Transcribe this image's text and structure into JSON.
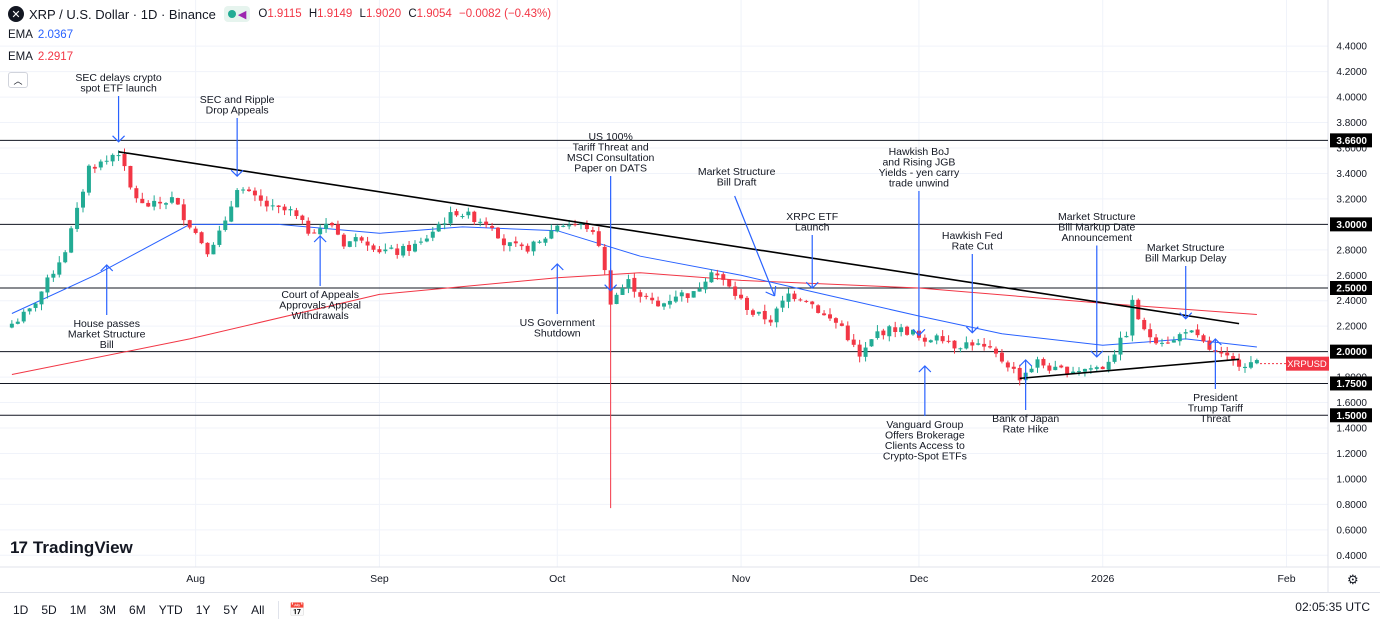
{
  "header": {
    "title": "XRP / U.S. Dollar · 1D · Binance",
    "ohlc": [
      {
        "k": "O",
        "v": "1.9115"
      },
      {
        "k": "H",
        "v": "1.9149"
      },
      {
        "k": "L",
        "v": "1.9020"
      },
      {
        "k": "C",
        "v": "1.9054"
      }
    ],
    "change": "−0.0082 (−0.43%)"
  },
  "indicators": [
    {
      "name": "EMA",
      "value": "2.0367",
      "color": "#2962ff"
    },
    {
      "name": "EMA",
      "value": "2.2917",
      "color": "#f23645"
    }
  ],
  "bottom_bar": {
    "timeframes": [
      "1D",
      "5D",
      "1M",
      "3M",
      "6M",
      "YTD",
      "1Y",
      "5Y",
      "All"
    ],
    "clock": "02:05:35 UTC"
  },
  "logo": "TradingView",
  "colors": {
    "up": "#22ab94",
    "down": "#f23645",
    "ema_fast": "#2962ff",
    "ema_slow": "#f23645",
    "annotation": "#2962ff"
  },
  "chart_data": {
    "type": "candlestick",
    "symbol_label": "XRPUSD",
    "ylim": [
      0.3,
      4.7
    ],
    "y_ticks": [
      "4.4000",
      "4.2000",
      "4.0000",
      "3.8000",
      "3.6000",
      "3.4000",
      "3.2000",
      "3.0000",
      "2.8000",
      "2.6000",
      "2.4000",
      "2.2000",
      "2.0000",
      "1.8000",
      "1.6000",
      "1.4000",
      "1.2000",
      "1.0000",
      "0.8000",
      "0.6000",
      "0.4000"
    ],
    "x_ticks": [
      {
        "label": "Aug",
        "date": "2025-08-01"
      },
      {
        "label": "Sep",
        "date": "2025-09-01"
      },
      {
        "label": "Oct",
        "date": "2025-10-01"
      },
      {
        "label": "Nov",
        "date": "2025-11-01"
      },
      {
        "label": "Dec",
        "date": "2025-12-01"
      },
      {
        "label": "2026",
        "date": "2026-01-01"
      },
      {
        "label": "Feb",
        "date": "2026-02-01"
      }
    ],
    "current_price": 1.9054,
    "horizontal_levels": [
      {
        "label": "3.6600",
        "value": 3.66
      },
      {
        "label": "3.0000",
        "value": 3.0
      },
      {
        "label": "2.5000",
        "value": 2.5
      },
      {
        "label": "2.0000",
        "value": 2.0
      },
      {
        "label": "1.7500",
        "value": 1.75
      },
      {
        "label": "1.5000",
        "value": 1.5
      }
    ],
    "trendlines": [
      {
        "from": [
          "2025-07-19",
          3.57
        ],
        "to": [
          "2026-01-24",
          2.22
        ]
      },
      {
        "from": [
          "2025-12-18",
          1.79
        ],
        "to": [
          "2026-01-24",
          1.94
        ]
      }
    ],
    "close_series": [
      {
        "date": "2025-07-01",
        "close": 2.22
      },
      {
        "date": "2025-07-04",
        "close": 2.32
      },
      {
        "date": "2025-07-07",
        "close": 2.55
      },
      {
        "date": "2025-07-10",
        "close": 2.8
      },
      {
        "date": "2025-07-12",
        "close": 3.1
      },
      {
        "date": "2025-07-14",
        "close": 3.45
      },
      {
        "date": "2025-07-17",
        "close": 3.5
      },
      {
        "date": "2025-07-18",
        "close": 3.55
      },
      {
        "date": "2025-07-19",
        "close": 3.57
      },
      {
        "date": "2025-07-21",
        "close": 3.28
      },
      {
        "date": "2025-07-23",
        "close": 3.15
      },
      {
        "date": "2025-07-25",
        "close": 3.15
      },
      {
        "date": "2025-07-28",
        "close": 3.2
      },
      {
        "date": "2025-07-31",
        "close": 3.0
      },
      {
        "date": "2025-08-03",
        "close": 2.8
      },
      {
        "date": "2025-08-06",
        "close": 3.0
      },
      {
        "date": "2025-08-08",
        "close": 3.3
      },
      {
        "date": "2025-08-11",
        "close": 3.2
      },
      {
        "date": "2025-08-14",
        "close": 3.12
      },
      {
        "date": "2025-08-17",
        "close": 3.1
      },
      {
        "date": "2025-08-20",
        "close": 2.95
      },
      {
        "date": "2025-08-24",
        "close": 3.0
      },
      {
        "date": "2025-08-26",
        "close": 2.85
      },
      {
        "date": "2025-08-29",
        "close": 2.9
      },
      {
        "date": "2025-09-01",
        "close": 2.8
      },
      {
        "date": "2025-09-04",
        "close": 2.78
      },
      {
        "date": "2025-09-08",
        "close": 2.85
      },
      {
        "date": "2025-09-11",
        "close": 3.0
      },
      {
        "date": "2025-09-14",
        "close": 3.1
      },
      {
        "date": "2025-09-17",
        "close": 3.05
      },
      {
        "date": "2025-09-20",
        "close": 3.0
      },
      {
        "date": "2025-09-22",
        "close": 2.85
      },
      {
        "date": "2025-09-25",
        "close": 2.8
      },
      {
        "date": "2025-09-28",
        "close": 2.85
      },
      {
        "date": "2025-10-01",
        "close": 3.0
      },
      {
        "date": "2025-10-04",
        "close": 3.0
      },
      {
        "date": "2025-10-06",
        "close": 2.98
      },
      {
        "date": "2025-10-08",
        "close": 2.85
      },
      {
        "date": "2025-10-10",
        "close": 2.4
      },
      {
        "date": "2025-10-13",
        "close": 2.55
      },
      {
        "date": "2025-10-15",
        "close": 2.45
      },
      {
        "date": "2025-10-18",
        "close": 2.35
      },
      {
        "date": "2025-10-21",
        "close": 2.45
      },
      {
        "date": "2025-10-24",
        "close": 2.45
      },
      {
        "date": "2025-10-27",
        "close": 2.65
      },
      {
        "date": "2025-10-30",
        "close": 2.5
      },
      {
        "date": "2025-11-03",
        "close": 2.3
      },
      {
        "date": "2025-11-06",
        "close": 2.25
      },
      {
        "date": "2025-11-09",
        "close": 2.45
      },
      {
        "date": "2025-11-12",
        "close": 2.42
      },
      {
        "date": "2025-11-15",
        "close": 2.28
      },
      {
        "date": "2025-11-18",
        "close": 2.2
      },
      {
        "date": "2025-11-21",
        "close": 1.95
      },
      {
        "date": "2025-11-24",
        "close": 2.15
      },
      {
        "date": "2025-11-27",
        "close": 2.18
      },
      {
        "date": "2025-11-30",
        "close": 2.15
      },
      {
        "date": "2025-12-02",
        "close": 2.05
      },
      {
        "date": "2025-12-04",
        "close": 2.15
      },
      {
        "date": "2025-12-07",
        "close": 2.05
      },
      {
        "date": "2025-12-10",
        "close": 2.07
      },
      {
        "date": "2025-12-13",
        "close": 2.0
      },
      {
        "date": "2025-12-16",
        "close": 1.9
      },
      {
        "date": "2025-12-18",
        "close": 1.8
      },
      {
        "date": "2025-12-21",
        "close": 1.92
      },
      {
        "date": "2025-12-24",
        "close": 1.85
      },
      {
        "date": "2025-12-28",
        "close": 1.86
      },
      {
        "date": "2026-01-01",
        "close": 1.88
      },
      {
        "date": "2026-01-03",
        "close": 2.0
      },
      {
        "date": "2026-01-05",
        "close": 2.15
      },
      {
        "date": "2026-01-06",
        "close": 2.38
      },
      {
        "date": "2026-01-08",
        "close": 2.15
      },
      {
        "date": "2026-01-10",
        "close": 2.1
      },
      {
        "date": "2026-01-13",
        "close": 2.08
      },
      {
        "date": "2026-01-15",
        "close": 2.18
      },
      {
        "date": "2026-01-17",
        "close": 2.1
      },
      {
        "date": "2026-01-20",
        "close": 1.98
      },
      {
        "date": "2026-01-23",
        "close": 1.92
      },
      {
        "date": "2026-01-25",
        "close": 1.91
      },
      {
        "date": "2026-01-27",
        "close": 1.9054
      }
    ],
    "ema_fast": [
      {
        "date": "2025-07-01",
        "value": 2.3
      },
      {
        "date": "2025-07-15",
        "value": 2.6
      },
      {
        "date": "2025-07-31",
        "value": 3.0
      },
      {
        "date": "2025-08-15",
        "value": 3.0
      },
      {
        "date": "2025-09-01",
        "value": 2.93
      },
      {
        "date": "2025-09-15",
        "value": 2.98
      },
      {
        "date": "2025-10-01",
        "value": 2.95
      },
      {
        "date": "2025-10-15",
        "value": 2.75
      },
      {
        "date": "2025-11-01",
        "value": 2.6
      },
      {
        "date": "2025-11-15",
        "value": 2.45
      },
      {
        "date": "2025-12-01",
        "value": 2.28
      },
      {
        "date": "2025-12-15",
        "value": 2.14
      },
      {
        "date": "2026-01-01",
        "value": 2.05
      },
      {
        "date": "2026-01-15",
        "value": 2.1
      },
      {
        "date": "2026-01-27",
        "value": 2.0367
      }
    ],
    "ema_slow": [
      {
        "date": "2025-07-01",
        "value": 1.82
      },
      {
        "date": "2025-07-31",
        "value": 2.1
      },
      {
        "date": "2025-09-01",
        "value": 2.45
      },
      {
        "date": "2025-10-01",
        "value": 2.58
      },
      {
        "date": "2025-10-15",
        "value": 2.62
      },
      {
        "date": "2025-11-01",
        "value": 2.56
      },
      {
        "date": "2025-12-01",
        "value": 2.5
      },
      {
        "date": "2026-01-01",
        "value": 2.38
      },
      {
        "date": "2026-01-27",
        "value": 2.2917
      }
    ],
    "annotations": [
      {
        "text": [
          "SEC delays crypto",
          "spot ETF launch"
        ],
        "date": "2025-07-19",
        "label_at": "top",
        "arrow": "down"
      },
      {
        "text": [
          "SEC and Ripple",
          "Drop Appeals"
        ],
        "date": "2025-08-08",
        "label_at": "top",
        "arrow": "down"
      },
      {
        "text": [
          "US 100%",
          "Tariff Threat and",
          "MSCI Consultation",
          "Paper on DATS"
        ],
        "date": "2025-10-10",
        "label_at": "top",
        "arrow": "down"
      },
      {
        "text": [
          "Market Structure",
          "Bill Draft"
        ],
        "date": "2025-11-07",
        "label_at": "top",
        "arrow": "diag"
      },
      {
        "text": [
          "XRPC ETF",
          "Launch"
        ],
        "date": "2025-11-13",
        "label_at": "top",
        "arrow": "down"
      },
      {
        "text": [
          "Hawkish BoJ",
          "and Rising JGB",
          "Yields - yen carry",
          "trade unwind"
        ],
        "date": "2025-12-01",
        "label_at": "top",
        "arrow": "down"
      },
      {
        "text": [
          "Hawkish Fed",
          "Rate Cut"
        ],
        "date": "2025-12-10",
        "label_at": "top",
        "arrow": "down"
      },
      {
        "text": [
          "Market Structure",
          "Bill Markup Date",
          "Announcement"
        ],
        "date": "2025-12-31",
        "label_at": "top",
        "arrow": "down"
      },
      {
        "text": [
          "Market Structure",
          "Bill Markup Delay"
        ],
        "date": "2026-01-15",
        "label_at": "top",
        "arrow": "down"
      },
      {
        "text": [
          "House passes",
          "Market Structure",
          "Bill"
        ],
        "date": "2025-07-17",
        "label_at": "bottom",
        "arrow": "up"
      },
      {
        "text": [
          "Court of Appeals",
          "Approvals Appeal",
          "Withdrawals"
        ],
        "date": "2025-08-22",
        "label_at": "bottom",
        "arrow": "up"
      },
      {
        "text": [
          "US Government",
          "Shutdown"
        ],
        "date": "2025-10-01",
        "label_at": "bottom",
        "arrow": "up"
      },
      {
        "text": [
          "Vanguard Group",
          "Offers Brokerage",
          "Clients Access to",
          "Crypto-Spot ETFs"
        ],
        "date": "2025-12-02",
        "label_at": "bottom",
        "arrow": "up"
      },
      {
        "text": [
          "Bank of Japan",
          "Rate Hike"
        ],
        "date": "2025-12-19",
        "label_at": "bottom",
        "arrow": "up"
      },
      {
        "text": [
          "President",
          "Trump Tariff",
          "Threat"
        ],
        "date": "2026-01-20",
        "label_at": "bottom",
        "arrow": "up"
      }
    ]
  }
}
